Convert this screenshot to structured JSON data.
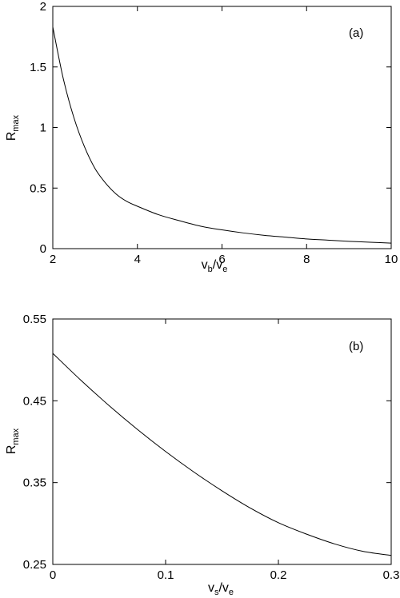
{
  "chart_data": [
    {
      "type": "line",
      "panel_label": "(a)",
      "xlabel": {
        "main1": "v",
        "sub1": "b",
        "sep": "/v",
        "sub2": "e"
      },
      "ylabel": {
        "main": "R",
        "sub": "max"
      },
      "xlim": [
        2,
        10
      ],
      "ylim": [
        0,
        2
      ],
      "xticks": [
        2,
        4,
        6,
        8,
        10
      ],
      "xtick_labels": [
        "2",
        "4",
        "6",
        "8",
        "10"
      ],
      "yticks": [
        0,
        0.5,
        1,
        1.5,
        2
      ],
      "ytick_labels": [
        "0",
        "0.5",
        "1",
        "1.5",
        "2"
      ],
      "grid": false,
      "line_color": "#000000",
      "series": [
        {
          "x": [
            2.0,
            2.25,
            2.5,
            2.75,
            3.0,
            3.25,
            3.5,
            3.75,
            4.0,
            4.5,
            5.0,
            5.5,
            6.0,
            6.5,
            7.0,
            7.5,
            8.0,
            8.5,
            9.0,
            9.5,
            10.0
          ],
          "y": [
            1.83,
            1.4,
            1.08,
            0.84,
            0.66,
            0.54,
            0.45,
            0.39,
            0.35,
            0.28,
            0.23,
            0.185,
            0.155,
            0.13,
            0.11,
            0.095,
            0.08,
            0.07,
            0.06,
            0.053,
            0.045
          ]
        }
      ]
    },
    {
      "type": "line",
      "panel_label": "(b)",
      "xlabel": {
        "main1": "v",
        "sub1": "s",
        "sep": "/v",
        "sub2": "e"
      },
      "ylabel": {
        "main": "R",
        "sub": "max"
      },
      "xlim": [
        0,
        0.3
      ],
      "ylim": [
        0.25,
        0.55
      ],
      "xticks": [
        0,
        0.1,
        0.2,
        0.3
      ],
      "xtick_labels": [
        "0",
        "0.1",
        "0.2",
        "0.3"
      ],
      "yticks": [
        0.25,
        0.35,
        0.45,
        0.55
      ],
      "ytick_labels": [
        "0.25",
        "0.35",
        "0.45",
        "0.55"
      ],
      "grid": false,
      "line_color": "#000000",
      "series": [
        {
          "x": [
            0.0,
            0.025,
            0.05,
            0.075,
            0.1,
            0.125,
            0.15,
            0.175,
            0.2,
            0.225,
            0.25,
            0.275,
            0.3
          ],
          "y": [
            0.508,
            0.475,
            0.444,
            0.415,
            0.388,
            0.363,
            0.34,
            0.319,
            0.301,
            0.287,
            0.275,
            0.266,
            0.261
          ]
        }
      ]
    }
  ]
}
